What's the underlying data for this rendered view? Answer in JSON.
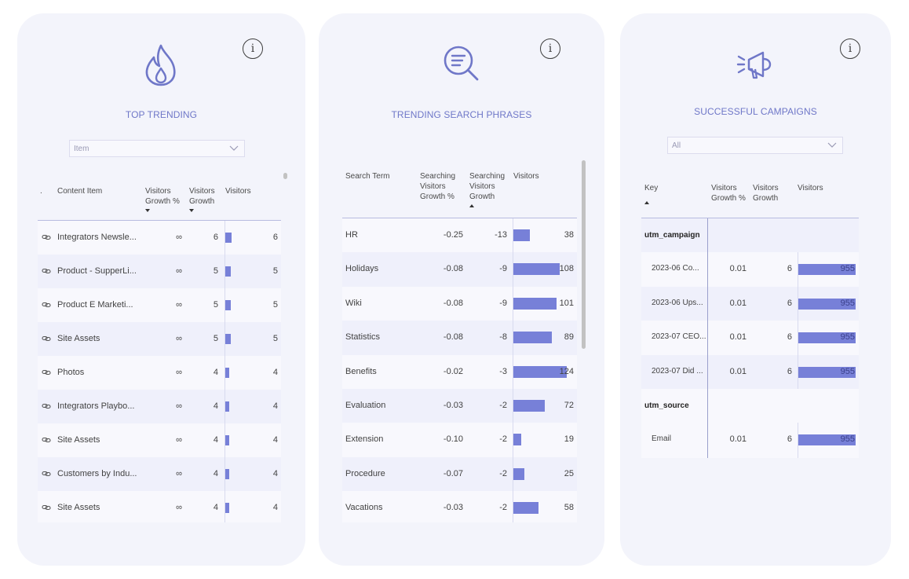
{
  "cards": {
    "top_trending": {
      "title": "TOP TRENDING",
      "icon": "flame-icon",
      "info_glyph": "i",
      "filter": {
        "value": "Item"
      },
      "columns": ".",
      "headers": [
        "Content Item",
        "Visitors Growth %",
        "Visitors Growth",
        "Visitors"
      ],
      "rows": [
        {
          "item": "Integrators Newsle...",
          "growth_pct": "∞",
          "growth": "6",
          "visitors": "6",
          "v": 6
        },
        {
          "item": "Product - SupperLi...",
          "growth_pct": "∞",
          "growth": "5",
          "visitors": "5",
          "v": 5
        },
        {
          "item": "Product E Marketi...",
          "growth_pct": "∞",
          "growth": "5",
          "visitors": "5",
          "v": 5
        },
        {
          "item": "Site Assets",
          "growth_pct": "∞",
          "growth": "5",
          "visitors": "5",
          "v": 5
        },
        {
          "item": "Photos",
          "growth_pct": "∞",
          "growth": "4",
          "visitors": "4",
          "v": 4
        },
        {
          "item": "Integrators Playbo...",
          "growth_pct": "∞",
          "growth": "4",
          "visitors": "4",
          "v": 4
        },
        {
          "item": "Site Assets",
          "growth_pct": "∞",
          "growth": "4",
          "visitors": "4",
          "v": 4
        },
        {
          "item": "Customers by Indu...",
          "growth_pct": "∞",
          "growth": "4",
          "visitors": "4",
          "v": 4
        },
        {
          "item": "Site Assets",
          "growth_pct": "∞",
          "growth": "4",
          "visitors": "4",
          "v": 4
        }
      ]
    },
    "search_phrases": {
      "title": "TRENDING SEARCH PHRASES",
      "icon": "search-list-icon",
      "info_glyph": "i",
      "headers": [
        "Search Term",
        "Searching Visitors Growth %",
        "Searching Visitors Growth",
        "Visitors"
      ],
      "rows": [
        {
          "term": "HR",
          "growth_pct": "-0.25",
          "growth": "-13",
          "visitors": "38",
          "v": 38
        },
        {
          "term": "Holidays",
          "growth_pct": "-0.08",
          "growth": "-9",
          "visitors": "108",
          "v": 108
        },
        {
          "term": "Wiki",
          "growth_pct": "-0.08",
          "growth": "-9",
          "visitors": "101",
          "v": 101
        },
        {
          "term": "Statistics",
          "growth_pct": "-0.08",
          "growth": "-8",
          "visitors": "89",
          "v": 89
        },
        {
          "term": "Benefits",
          "growth_pct": "-0.02",
          "growth": "-3",
          "visitors": "124",
          "v": 124
        },
        {
          "term": "Evaluation",
          "growth_pct": "-0.03",
          "growth": "-2",
          "visitors": "72",
          "v": 72
        },
        {
          "term": "Extension",
          "growth_pct": "-0.10",
          "growth": "-2",
          "visitors": "19",
          "v": 19
        },
        {
          "term": "Procedure",
          "growth_pct": "-0.07",
          "growth": "-2",
          "visitors": "25",
          "v": 25
        },
        {
          "term": "Vacations",
          "growth_pct": "-0.03",
          "growth": "-2",
          "visitors": "58",
          "v": 58
        }
      ]
    },
    "campaigns": {
      "title": "SUCCESSFUL CAMPAIGNS",
      "icon": "megaphone-icon",
      "info_glyph": "i",
      "filter": {
        "value": "All"
      },
      "headers": [
        "Key",
        "Visitors Growth %",
        "Visitors Growth",
        "Visitors"
      ],
      "groups": [
        {
          "label": "utm_campaign",
          "rows": [
            {
              "key": "2023-06 Co...",
              "growth_pct": "0.01",
              "growth": "6",
              "visitors": "955"
            },
            {
              "key": "2023-06 Ups...",
              "growth_pct": "0.01",
              "growth": "6",
              "visitors": "955"
            },
            {
              "key": "2023-07 CEO...",
              "growth_pct": "0.01",
              "growth": "6",
              "visitors": "955"
            },
            {
              "key": "2023-07 Did ...",
              "growth_pct": "0.01",
              "growth": "6",
              "visitors": "955"
            }
          ]
        },
        {
          "label": "utm_source",
          "rows": [
            {
              "key": "Email",
              "growth_pct": "0.01",
              "growth": "6",
              "visitors": "955"
            }
          ]
        }
      ]
    }
  },
  "colors": {
    "accent": "#6f77c8",
    "bar": "#7780d8",
    "card_bg": "#f3f4fb"
  }
}
